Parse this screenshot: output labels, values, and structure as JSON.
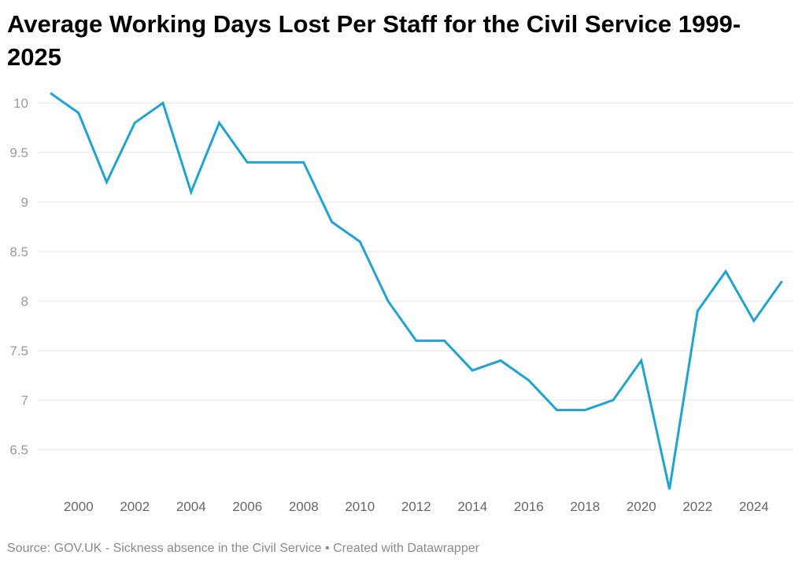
{
  "chart_data": {
    "type": "line",
    "title": "Average Working Days Lost Per Staff for the Civil Service 1999-2025",
    "xlabel": "",
    "ylabel": "",
    "x": [
      1999,
      2000,
      2001,
      2002,
      2003,
      2004,
      2005,
      2006,
      2007,
      2008,
      2009,
      2010,
      2011,
      2012,
      2013,
      2014,
      2015,
      2016,
      2017,
      2018,
      2019,
      2020,
      2021,
      2022,
      2023,
      2024,
      2025
    ],
    "series": [
      {
        "values": [
          10.1,
          9.9,
          9.2,
          9.8,
          10.0,
          9.1,
          9.8,
          9.4,
          9.4,
          9.4,
          8.8,
          8.6,
          8.0,
          7.6,
          7.6,
          7.3,
          7.4,
          7.2,
          6.9,
          6.9,
          7.0,
          7.4,
          6.1,
          7.9,
          8.3,
          7.8,
          8.2
        ],
        "color": "#1fa3d1"
      }
    ],
    "xticks": [
      "2000",
      "2002",
      "2004",
      "2006",
      "2008",
      "2010",
      "2012",
      "2014",
      "2016",
      "2018",
      "2020",
      "2022",
      "2024"
    ],
    "yticks": [
      "6.5",
      "7",
      "7.5",
      "8",
      "8.5",
      "9",
      "9.5",
      "10"
    ],
    "xlim": [
      1999,
      2025
    ],
    "ylim": [
      6.1,
      10.1
    ],
    "grid": true,
    "source": "Source: GOV.UK - Sickness absence in the Civil Service • Created with Datawrapper"
  }
}
